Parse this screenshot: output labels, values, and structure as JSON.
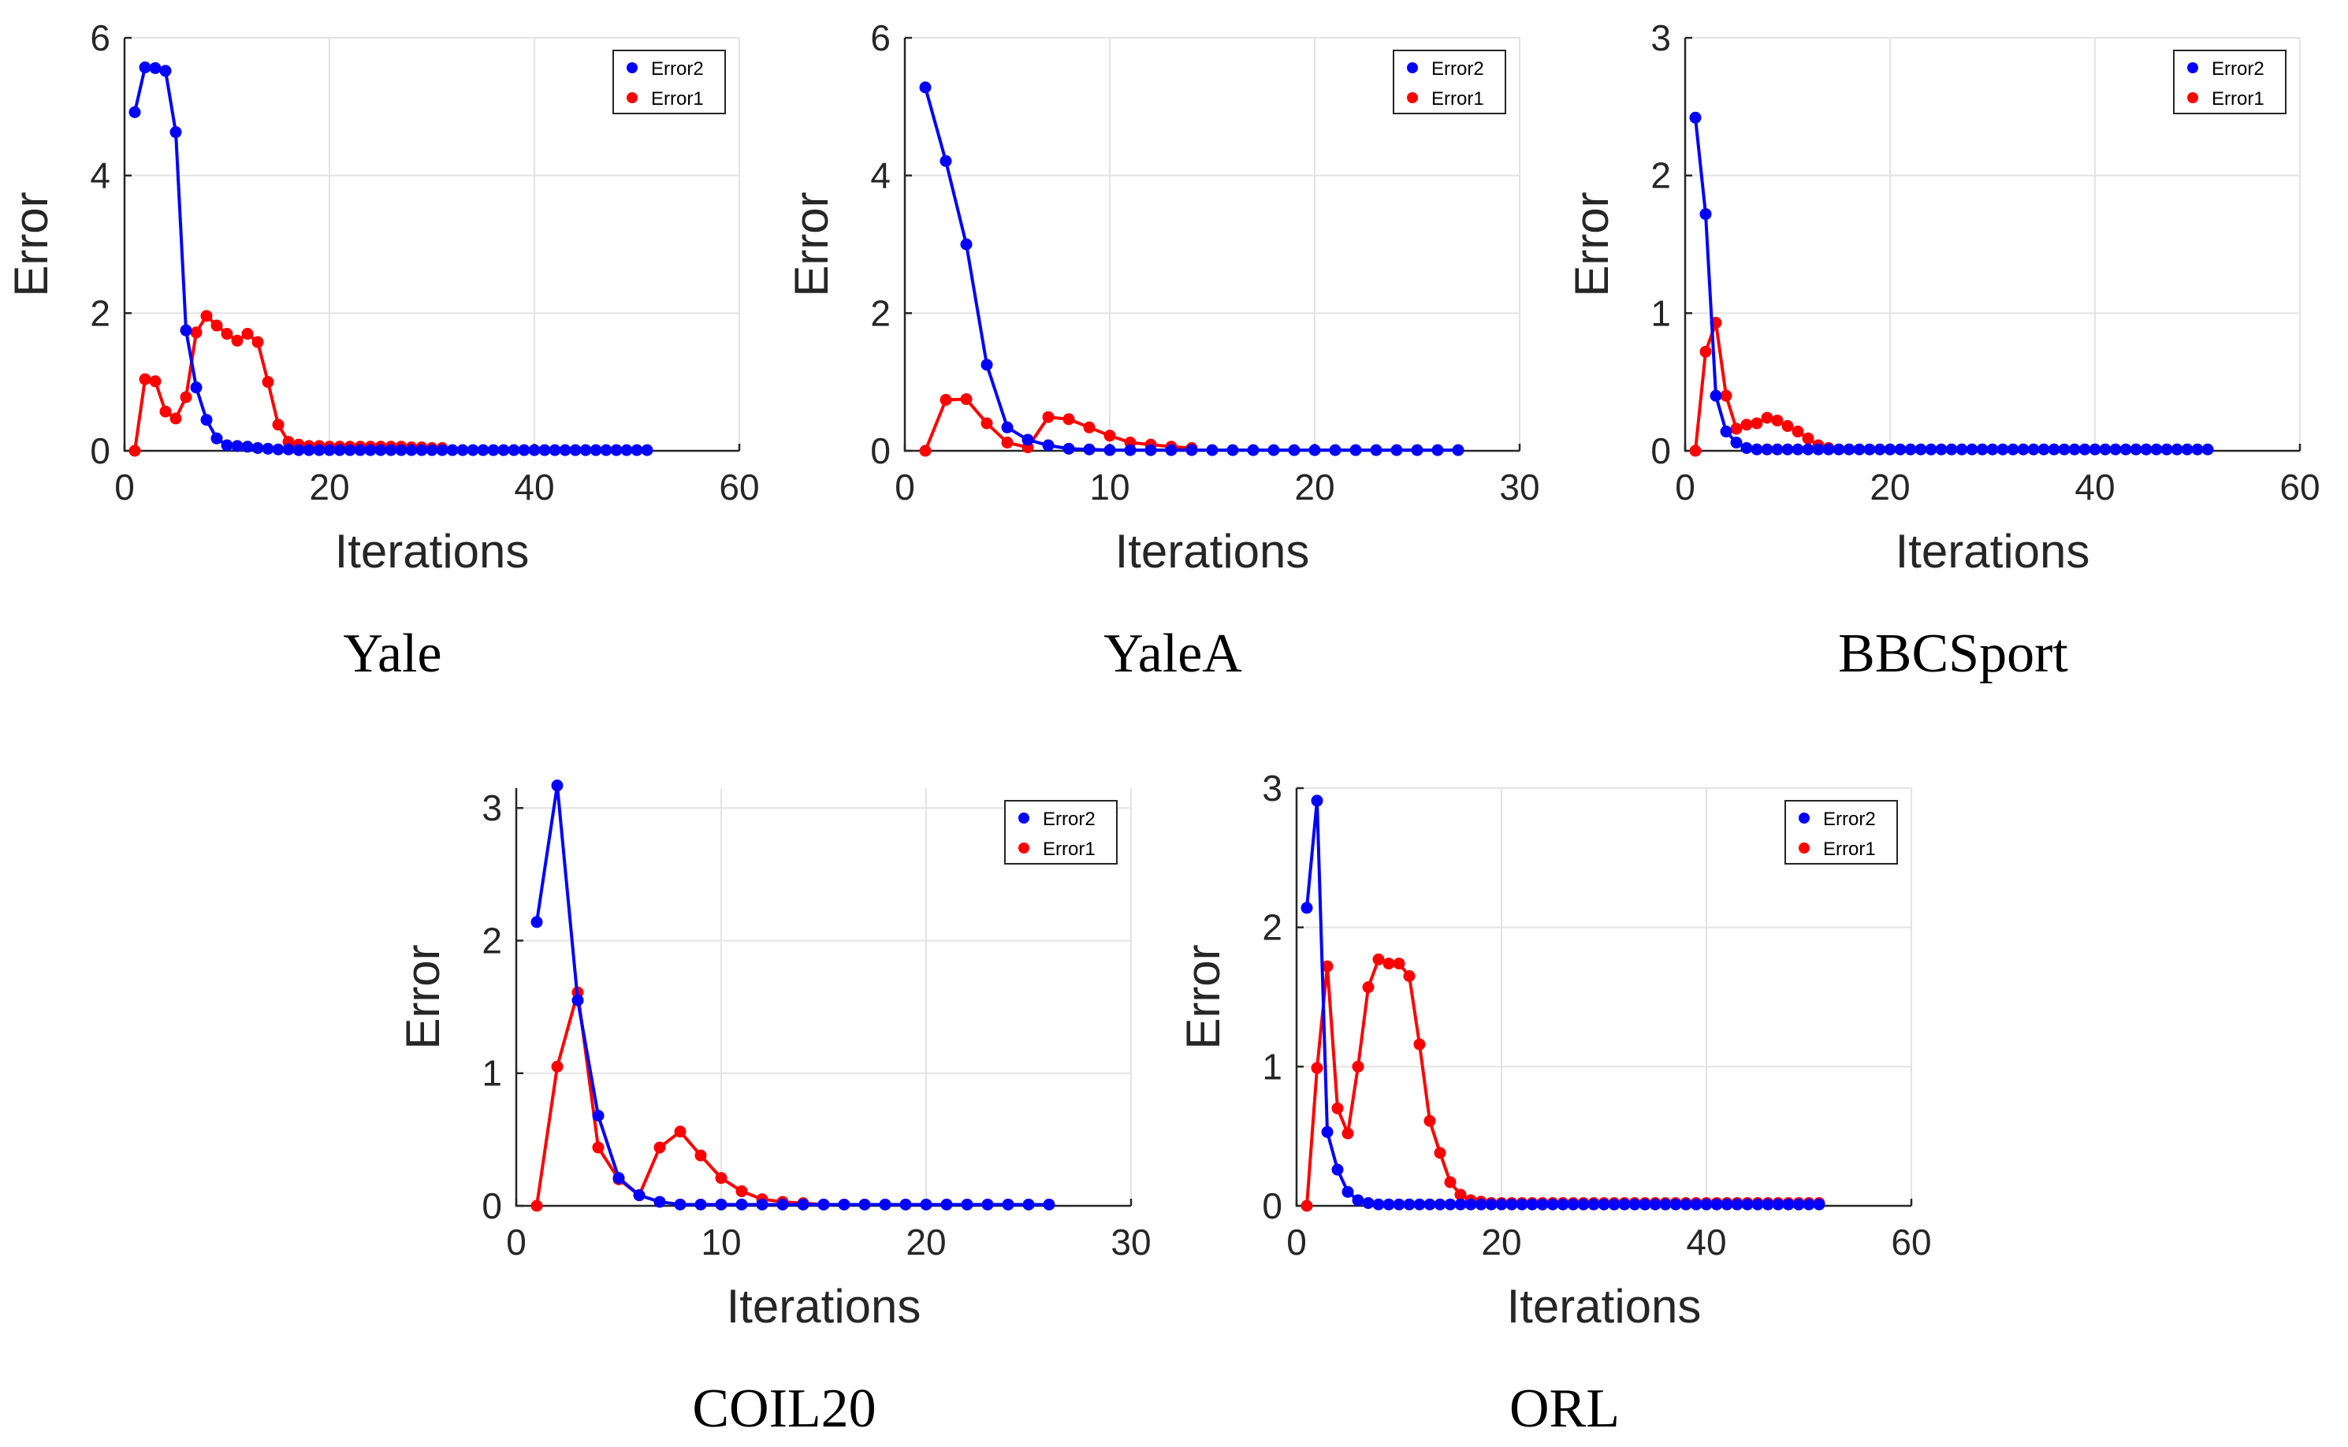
{
  "colors": {
    "error2": "#0000ff",
    "error1": "#ff0000",
    "grid": "#e3e3e3",
    "axis": "#262626"
  },
  "chart_data": [
    {
      "type": "line",
      "title": "Yale",
      "xlabel": "Iterations",
      "ylabel": "Error",
      "xlim": [
        0,
        60
      ],
      "ylim": [
        0,
        6
      ],
      "xticks": [
        "0",
        "20",
        "40",
        "60"
      ],
      "yticks": [
        "0",
        "2",
        "4",
        "6"
      ],
      "xtick_values": [
        0,
        20,
        40,
        60
      ],
      "ytick_values": [
        0,
        2,
        4,
        6
      ],
      "grid": true,
      "legend": "top-right",
      "series": [
        {
          "name": "Error2",
          "color": "#0000ff",
          "values": [
            4.92,
            5.57,
            5.56,
            5.52,
            4.63,
            1.75,
            0.92,
            0.45,
            0.18,
            0.08,
            0.07,
            0.06,
            0.04,
            0.03,
            0.02,
            0.02,
            0.01,
            0.01,
            0.01,
            0.01,
            0.01,
            0.01,
            0.01,
            0.01,
            0.01,
            0.01,
            0.01,
            0.01,
            0.01,
            0.01,
            0.01,
            0.01,
            0.01,
            0.01,
            0.01,
            0.01,
            0.01,
            0.01,
            0.01,
            0.01,
            0.01,
            0.01,
            0.01,
            0.01,
            0.01,
            0.01,
            0.01,
            0.01,
            0.01,
            0.01,
            0.01
          ]
        },
        {
          "name": "Error1",
          "color": "#ff0000",
          "values": [
            0,
            1.04,
            1.01,
            0.57,
            0.47,
            0.78,
            1.72,
            1.96,
            1.82,
            1.7,
            1.6,
            1.7,
            1.58,
            1.0,
            0.38,
            0.13,
            0.09,
            0.07,
            0.07,
            0.06,
            0.06,
            0.06,
            0.06,
            0.06,
            0.06,
            0.06,
            0.06,
            0.05,
            0.05,
            0.04,
            0.04
          ]
        }
      ]
    },
    {
      "type": "line",
      "title": "YaleA",
      "xlabel": "Iterations",
      "ylabel": "Error",
      "xlim": [
        0,
        30
      ],
      "ylim": [
        0,
        6
      ],
      "xticks": [
        "0",
        "10",
        "20",
        "30"
      ],
      "yticks": [
        "0",
        "2",
        "4",
        "6"
      ],
      "xtick_values": [
        0,
        10,
        20,
        30
      ],
      "ytick_values": [
        0,
        2,
        4,
        6
      ],
      "grid": true,
      "legend": "top-right",
      "series": [
        {
          "name": "Error2",
          "color": "#0000ff",
          "values": [
            5.28,
            4.21,
            3.0,
            1.25,
            0.34,
            0.16,
            0.08,
            0.03,
            0.02,
            0.01,
            0.01,
            0.01,
            0.01,
            0.01,
            0.01,
            0.01,
            0.01,
            0.01,
            0.01,
            0.01,
            0.01,
            0.01,
            0.01,
            0.01,
            0.01,
            0.01,
            0.01
          ]
        },
        {
          "name": "Error1",
          "color": "#ff0000",
          "values": [
            0,
            0.74,
            0.75,
            0.4,
            0.12,
            0.05,
            0.49,
            0.46,
            0.34,
            0.22,
            0.12,
            0.09,
            0.06,
            0.04
          ]
        }
      ]
    },
    {
      "type": "line",
      "title": "BBCSport",
      "xlabel": "Iterations",
      "ylabel": "Error",
      "xlim": [
        0,
        60
      ],
      "ylim": [
        0,
        3
      ],
      "xticks": [
        "0",
        "20",
        "40",
        "60"
      ],
      "yticks": [
        "0",
        "1",
        "2",
        "3"
      ],
      "xtick_values": [
        0,
        20,
        40,
        60
      ],
      "ytick_values": [
        0,
        1,
        2,
        3
      ],
      "grid": true,
      "legend": "top-right",
      "series": [
        {
          "name": "Error2",
          "color": "#0000ff",
          "values": [
            2.42,
            1.72,
            0.4,
            0.14,
            0.06,
            0.02,
            0.01,
            0.01,
            0.01,
            0.01,
            0.01,
            0.01,
            0.01,
            0.01,
            0.01,
            0.01,
            0.01,
            0.01,
            0.01,
            0.01,
            0.01,
            0.01,
            0.01,
            0.01,
            0.01,
            0.01,
            0.01,
            0.01,
            0.01,
            0.01,
            0.01,
            0.01,
            0.01,
            0.01,
            0.01,
            0.01,
            0.01,
            0.01,
            0.01,
            0.01,
            0.01,
            0.01,
            0.01,
            0.01,
            0.01,
            0.01,
            0.01,
            0.01,
            0.01,
            0.01,
            0.01
          ]
        },
        {
          "name": "Error1",
          "color": "#ff0000",
          "values": [
            0,
            0.72,
            0.93,
            0.4,
            0.16,
            0.19,
            0.2,
            0.24,
            0.22,
            0.18,
            0.14,
            0.09,
            0.04,
            0.02
          ]
        }
      ]
    },
    {
      "type": "line",
      "title": "COIL20",
      "xlabel": "Iterations",
      "ylabel": "Error",
      "xlim": [
        0,
        30
      ],
      "ylim": [
        0,
        3.15
      ],
      "xticks": [
        "0",
        "10",
        "20",
        "30"
      ],
      "yticks": [
        "0",
        "1",
        "2",
        "3"
      ],
      "xtick_values": [
        0,
        10,
        20,
        30
      ],
      "ytick_values": [
        0,
        1,
        2,
        3
      ],
      "grid": true,
      "legend": "top-right",
      "series": [
        {
          "name": "Error2",
          "color": "#0000ff",
          "values": [
            2.14,
            3.17,
            1.55,
            0.68,
            0.21,
            0.08,
            0.03,
            0.01,
            0.01,
            0.01,
            0.01,
            0.01,
            0.01,
            0.01,
            0.01,
            0.01,
            0.01,
            0.01,
            0.01,
            0.01,
            0.01,
            0.01,
            0.01,
            0.01,
            0.01,
            0.01
          ]
        },
        {
          "name": "Error1",
          "color": "#ff0000",
          "values": [
            0,
            1.05,
            1.61,
            0.44,
            0.2,
            0.08,
            0.44,
            0.56,
            0.38,
            0.21,
            0.11,
            0.05,
            0.03,
            0.02,
            0.01
          ]
        }
      ]
    },
    {
      "type": "line",
      "title": "ORL",
      "xlabel": "Iterations",
      "ylabel": "Error",
      "xlim": [
        0,
        60
      ],
      "ylim": [
        0,
        3
      ],
      "xticks": [
        "0",
        "20",
        "40",
        "60"
      ],
      "yticks": [
        "0",
        "1",
        "2",
        "3"
      ],
      "xtick_values": [
        0,
        20,
        40,
        60
      ],
      "ytick_values": [
        0,
        1,
        2,
        3
      ],
      "grid": true,
      "legend": "top-right",
      "series": [
        {
          "name": "Error2",
          "color": "#0000ff",
          "values": [
            2.14,
            2.91,
            0.53,
            0.26,
            0.1,
            0.04,
            0.02,
            0.01,
            0.01,
            0.01,
            0.01,
            0.01,
            0.01,
            0.01,
            0.01,
            0.01,
            0.01,
            0.01,
            0.01,
            0.01,
            0.01,
            0.01,
            0.01,
            0.01,
            0.01,
            0.01,
            0.01,
            0.01,
            0.01,
            0.01,
            0.01,
            0.01,
            0.01,
            0.01,
            0.01,
            0.01,
            0.01,
            0.01,
            0.01,
            0.01,
            0.01,
            0.01,
            0.01,
            0.01,
            0.01,
            0.01,
            0.01,
            0.01,
            0.01,
            0.01,
            0.01
          ]
        },
        {
          "name": "Error1",
          "color": "#ff0000",
          "values": [
            0,
            0.99,
            1.72,
            0.7,
            0.52,
            1.0,
            1.57,
            1.77,
            1.74,
            1.74,
            1.65,
            1.16,
            0.61,
            0.38,
            0.17,
            0.08,
            0.04,
            0.03,
            0.02,
            0.02,
            0.02,
            0.02,
            0.02,
            0.02,
            0.02,
            0.02,
            0.02,
            0.02,
            0.02,
            0.02,
            0.02,
            0.02,
            0.02,
            0.02,
            0.02,
            0.02,
            0.02,
            0.02,
            0.02,
            0.02,
            0.02,
            0.02,
            0.02,
            0.02,
            0.02,
            0.02,
            0.02,
            0.02,
            0.02,
            0.02,
            0.02
          ]
        }
      ]
    }
  ]
}
